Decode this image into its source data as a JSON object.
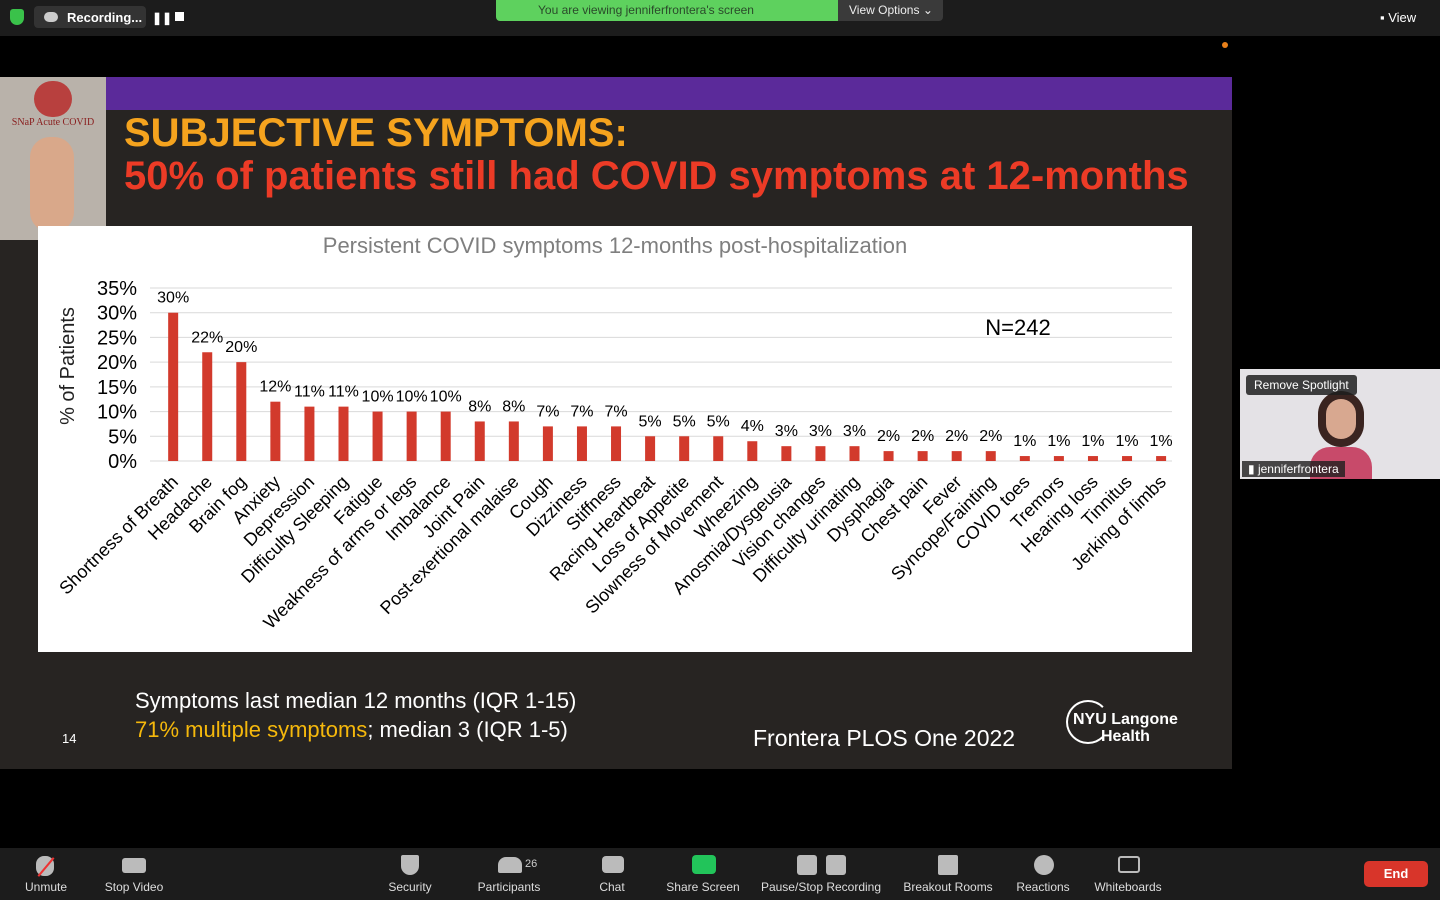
{
  "top_bar": {
    "recording": "Recording...",
    "banner": "You are viewing jenniferfrontera's screen",
    "view_options": "View Options",
    "view": "View"
  },
  "slide": {
    "logo_text": "SNaP Acute COVID",
    "title_line1": "SUBJECTIVE SYMPTOMS:",
    "title_line2": "50% of patients still had COVID symptoms at 12-months",
    "chart": {
      "type": "bar",
      "title": "Persistent COVID symptoms 12-months post-hospitalization",
      "y_axis_label": "% of Patients",
      "annotation": "N=242",
      "categories": [
        "Shortness of Breath",
        "Headache",
        "Brain fog",
        "Anxiety",
        "Depression",
        "Difficulty Sleeping",
        "Fatigue",
        "Weakness of arms or legs",
        "Imbalance",
        "Joint Pain",
        "Post-exertional malaise",
        "Cough",
        "Dizziness",
        "Stiffness",
        "Racing Heartbeat",
        "Loss of Appetite",
        "Slowness of Movement",
        "Wheezing",
        "Anosmia/Dysgeusia",
        "Vision changes",
        "Difficulty urinating",
        "Dysphagia",
        "Chest pain",
        "Fever",
        "Syncope/Fainting",
        "COVID toes",
        "Tremors",
        "Hearing loss",
        "Tinnitus",
        "Jerking of limbs"
      ],
      "values": [
        30,
        22,
        20,
        12,
        11,
        11,
        10,
        10,
        10,
        8,
        8,
        7,
        7,
        7,
        5,
        5,
        5,
        4,
        3,
        3,
        3,
        2,
        2,
        2,
        2,
        1,
        1,
        1,
        1,
        1
      ],
      "value_labels": [
        "30%",
        "22%",
        "20%",
        "12%",
        "11%",
        "11%",
        "10%",
        "10%",
        "10%",
        "8%",
        "8%",
        "7%",
        "7%",
        "7%",
        "5%",
        "5%",
        "5%",
        "4%",
        "3%",
        "3%",
        "3%",
        "2%",
        "2%",
        "2%",
        "2%",
        "1%",
        "1%",
        "1%",
        "1%",
        "1%"
      ],
      "color": "#d23a2c",
      "ylim": [
        0,
        35
      ],
      "yticks": [
        {
          "value": 0,
          "label": "0%"
        },
        {
          "value": 5,
          "label": "5%"
        },
        {
          "value": 10,
          "label": "10%"
        },
        {
          "value": 15,
          "label": "15%"
        },
        {
          "value": 20,
          "label": "20%"
        },
        {
          "value": 25,
          "label": "25%"
        },
        {
          "value": 30,
          "label": "30%"
        },
        {
          "value": 35,
          "label": "35%"
        }
      ],
      "grid": true
    },
    "footer": {
      "line1": "Symptoms last median 12 months (IQR 1-15)",
      "line2_highlight": "71% multiple symptoms",
      "line2_rest": "; median 3 (IQR 1-5)",
      "page_number": "14",
      "citation": "Frontera PLOS One 2022",
      "logo_line1": "NYU Langone",
      "logo_line2": "Health"
    }
  },
  "video_tile": {
    "button": "Remove Spotlight",
    "name": "jenniferfrontera"
  },
  "toolbar": {
    "unmute": "Unmute",
    "stop_video": "Stop Video",
    "security": "Security",
    "participant_count": 26,
    "participants": "Participants",
    "chat": "Chat",
    "share_screen": "Share Screen",
    "recording": "Pause/Stop Recording",
    "breakout": "Breakout Rooms",
    "reactions": "Reactions",
    "whiteboards": "Whiteboards",
    "end": "End"
  }
}
